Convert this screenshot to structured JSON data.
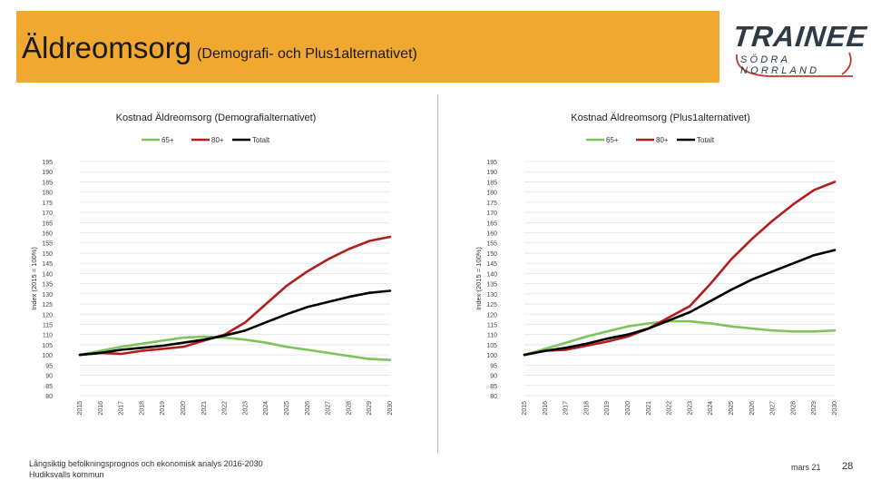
{
  "header": {
    "title": "Äldreomsorg",
    "subtitle": "(Demografi- och Plus1alternativet)"
  },
  "logo": {
    "word": "TRAINEE",
    "region": "SÖDRA NORRLAND"
  },
  "footer": {
    "source_line1": "Långsiktig befolkningsprognos och ekonomisk analys 2016-2030",
    "source_line2": "Hudiksvalls kommun",
    "date": "mars 21",
    "page_number": "28"
  },
  "colors": {
    "header_bg": "#f0a830",
    "series_65": "#7dc45a",
    "series_80": "#b51c1c",
    "series_total": "#000000"
  },
  "chart_data": [
    {
      "type": "line",
      "title": "Kostnad Äldreomsorg (Demografialternativet)",
      "ylabel": "Index (2015 = 100%)",
      "xlabel": "",
      "ylim": [
        80,
        195
      ],
      "yticks": [
        80,
        85,
        90,
        95,
        100,
        105,
        110,
        115,
        120,
        125,
        130,
        135,
        140,
        145,
        150,
        155,
        160,
        165,
        170,
        175,
        180,
        185,
        190,
        195
      ],
      "categories": [
        "2015",
        "2016",
        "2017",
        "2018",
        "2019",
        "2020",
        "2021",
        "2022",
        "2023",
        "2024",
        "2025",
        "2026",
        "2027",
        "2028",
        "2029",
        "2030"
      ],
      "legend": [
        "65+",
        "80+",
        "Totalt"
      ],
      "series": [
        {
          "name": "65+",
          "color": "#7dc45a",
          "values": [
            100,
            102,
            104,
            105.5,
            107,
            108.5,
            109,
            108.5,
            107.5,
            106,
            104,
            102.5,
            101,
            99.5,
            98,
            97.5
          ]
        },
        {
          "name": "80+",
          "color": "#b51c1c",
          "values": [
            100,
            101,
            100.5,
            102,
            103,
            104,
            107,
            110,
            116,
            125,
            134,
            141,
            147,
            152,
            156,
            158
          ]
        },
        {
          "name": "Totalt",
          "color": "#000000",
          "values": [
            100,
            101,
            102.5,
            103.5,
            104.5,
            106,
            107.5,
            109.5,
            112,
            116,
            120,
            123.5,
            126,
            128.5,
            130.5,
            131.5
          ]
        }
      ]
    },
    {
      "type": "line",
      "title": "Kostnad Äldreomsorg (Plus1alternativet)",
      "ylabel": "Index (2015 = 100%)",
      "xlabel": "",
      "ylim": [
        80,
        195
      ],
      "yticks": [
        80,
        85,
        90,
        95,
        100,
        105,
        110,
        115,
        120,
        125,
        130,
        135,
        140,
        145,
        150,
        155,
        160,
        165,
        170,
        175,
        180,
        185,
        190,
        195
      ],
      "categories": [
        "2015",
        "2016",
        "2017",
        "2018",
        "2019",
        "2020",
        "2021",
        "2022",
        "2023",
        "2024",
        "2025",
        "2026",
        "2027",
        "2028",
        "2029",
        "2030"
      ],
      "legend": [
        "65+",
        "80+",
        "Totalt"
      ],
      "series": [
        {
          "name": "65+",
          "color": "#7dc45a",
          "values": [
            100,
            103,
            106,
            109,
            111.5,
            114,
            115.5,
            116.5,
            116.5,
            115.5,
            114,
            113,
            112,
            111.5,
            111.5,
            112
          ]
        },
        {
          "name": "80+",
          "color": "#b51c1c",
          "values": [
            100,
            102,
            102.5,
            104.5,
            106.5,
            109,
            113,
            118.5,
            124,
            135,
            147,
            157,
            166,
            174,
            181,
            185
          ]
        },
        {
          "name": "Totalt",
          "color": "#000000",
          "values": [
            100,
            102,
            103.5,
            105.5,
            108,
            110,
            113,
            117,
            121,
            126.5,
            132,
            137,
            141,
            145,
            149,
            151.5
          ]
        }
      ]
    }
  ]
}
